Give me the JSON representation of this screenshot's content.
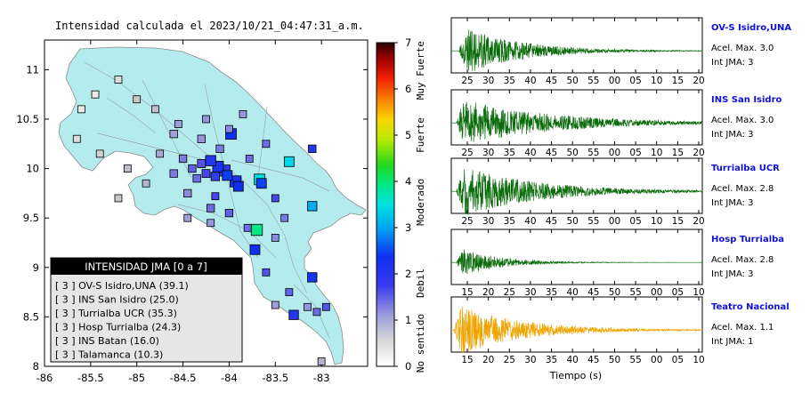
{
  "map_title": "Intensidad calculada el 2023/10/21_04:47:31_a.m.",
  "legend": {
    "header": "INTENSIDAD JMA [0 a 7]",
    "entries": [
      "[ 3 ] OV-S Isidro,UNA (39.1)",
      "[ 3 ] INS San Isidro (25.0)",
      "[ 3 ] Turrialba UCR (35.3)",
      "[ 3 ] Hosp Turrialba (24.3)",
      "[ 3 ] INS Batan (16.0)",
      "[ 3 ] Talamanca (10.3)"
    ]
  },
  "colorbar": {
    "ticks": [
      "0",
      "1",
      "2",
      "3",
      "4",
      "5",
      "6",
      "7"
    ],
    "labels": [
      "No sentido",
      "Debil",
      "Moderado",
      "Fuerte",
      "Muy Fuerte"
    ]
  },
  "colors": {
    "land": "#b4ecee",
    "frame": "#000000",
    "seismo_green": "#0a6b0a",
    "seismo_orange": "#f0a400",
    "station_name": "#1010d8"
  },
  "stations": [
    {
      "name": "OV-S Isidro,UNA",
      "acel": "Acel. Max. 3.0",
      "jma": "Int JMA: 3",
      "ticks": [
        "25",
        "30",
        "35",
        "40",
        "45",
        "50",
        "55",
        "00",
        "05",
        "10",
        "15",
        "20"
      ],
      "color": "#0a6b0a",
      "peak": 0.9,
      "onset": 0.03,
      "decay": 0.22
    },
    {
      "name": "INS San Isidro",
      "acel": "Acel. Max. 3.0",
      "jma": "Int JMA: 3",
      "ticks": [
        "25",
        "30",
        "35",
        "40",
        "45",
        "50",
        "55",
        "00",
        "05",
        "10",
        "15",
        "20"
      ],
      "color": "#0a6b0a",
      "peak": 0.85,
      "onset": 0.02,
      "decay": 0.35
    },
    {
      "name": "Turrialba UCR",
      "acel": "Acel. Max. 2.8",
      "jma": "Int JMA: 3",
      "ticks": [
        "25",
        "30",
        "35",
        "40",
        "45",
        "50",
        "55",
        "00",
        "05",
        "10",
        "15",
        "20"
      ],
      "color": "#0a6b0a",
      "peak": 0.9,
      "onset": 0.02,
      "decay": 0.3
    },
    {
      "name": "Hosp Turrialba",
      "acel": "Acel. Max. 2.8",
      "jma": "Int JMA: 3",
      "ticks": [
        "15",
        "20",
        "25",
        "30",
        "35",
        "40",
        "45",
        "50",
        "55",
        "00",
        "05",
        "10"
      ],
      "color": "#0a6b0a",
      "peak": 0.55,
      "onset": 0.02,
      "decay": 0.15
    },
    {
      "name": "Teatro Nacional",
      "acel": "Acel. Max. 1.1",
      "jma": "Int JMA: 1",
      "ticks": [
        "15",
        "20",
        "25",
        "30",
        "35",
        "40",
        "45",
        "50",
        "55",
        "00",
        "05",
        "10"
      ],
      "color": "#f0a400",
      "peak": 0.9,
      "onset": 0.01,
      "decay": 0.25
    }
  ],
  "chart_data": [
    {
      "type": "scatter",
      "title": "Intensidad calculada el 2023/10/21_04:47:31_a.m.",
      "x_ticks": [
        "-86",
        "-85.5",
        "-85",
        "-84.5",
        "-84",
        "-83.5",
        "-83"
      ],
      "y_ticks": [
        "8",
        "8.5",
        "9",
        "9.5",
        "10",
        "10.5",
        "11"
      ],
      "xlim": [
        -86,
        -82.5
      ],
      "ylim": [
        8,
        11.3
      ],
      "points": [
        {
          "x": -83.98,
          "y": 10.35,
          "jma": 2.2,
          "size": 1.4
        },
        {
          "x": -83.35,
          "y": 10.07,
          "jma": 3.4,
          "size": 1.2
        },
        {
          "x": -83.67,
          "y": 9.89,
          "jma": 3.5,
          "size": 1.4
        },
        {
          "x": -83.65,
          "y": 9.85,
          "jma": 2.3,
          "size": 1.2
        },
        {
          "x": -83.93,
          "y": 9.87,
          "jma": 2.1,
          "size": 1.5
        },
        {
          "x": -83.9,
          "y": 9.82,
          "jma": 2.2,
          "size": 1.2
        },
        {
          "x": -84.05,
          "y": 9.98,
          "jma": 1.9,
          "size": 1.5
        },
        {
          "x": -84.12,
          "y": 10.02,
          "jma": 2.1,
          "size": 1.4
        },
        {
          "x": -84.2,
          "y": 10.08,
          "jma": 2.0,
          "size": 1.3
        },
        {
          "x": -84.02,
          "y": 9.93,
          "jma": 2.3,
          "size": 1.2
        },
        {
          "x": -83.7,
          "y": 9.38,
          "jma": 3.9,
          "size": 1.5
        },
        {
          "x": -83.72,
          "y": 9.18,
          "jma": 2.2,
          "size": 1.2
        },
        {
          "x": -83.1,
          "y": 9.62,
          "jma": 3.0,
          "size": 1.1
        },
        {
          "x": -83.1,
          "y": 8.9,
          "jma": 2.1,
          "size": 1.1
        },
        {
          "x": -83.3,
          "y": 8.52,
          "jma": 2.0,
          "size": 1.1
        },
        {
          "x": -83.1,
          "y": 10.2,
          "jma": 2.0,
          "size": 0.7
        },
        {
          "x": -84.15,
          "y": 9.92,
          "jma": 1.8,
          "size": 0.9
        },
        {
          "x": -84.25,
          "y": 9.95,
          "jma": 1.6,
          "size": 0.8
        },
        {
          "x": -84.3,
          "y": 10.05,
          "jma": 1.5,
          "size": 0.8
        },
        {
          "x": -84.4,
          "y": 10.0,
          "jma": 1.4,
          "size": 0.7
        },
        {
          "x": -84.35,
          "y": 9.9,
          "jma": 1.3,
          "size": 0.7
        },
        {
          "x": -84.5,
          "y": 10.1,
          "jma": 1.2,
          "size": 0.7
        },
        {
          "x": -84.6,
          "y": 9.95,
          "jma": 1.2,
          "size": 0.7
        },
        {
          "x": -84.45,
          "y": 9.75,
          "jma": 1.1,
          "size": 0.7
        },
        {
          "x": -84.2,
          "y": 9.6,
          "jma": 1.3,
          "size": 0.7
        },
        {
          "x": -84.0,
          "y": 9.55,
          "jma": 1.4,
          "size": 0.7
        },
        {
          "x": -84.1,
          "y": 10.2,
          "jma": 1.2,
          "size": 0.7
        },
        {
          "x": -84.3,
          "y": 10.3,
          "jma": 1.0,
          "size": 0.7
        },
        {
          "x": -84.6,
          "y": 10.35,
          "jma": 0.9,
          "size": 0.7
        },
        {
          "x": -84.8,
          "y": 10.6,
          "jma": 0.6,
          "size": 0.6
        },
        {
          "x": -85.0,
          "y": 10.7,
          "jma": 0.5,
          "size": 0.6
        },
        {
          "x": -85.2,
          "y": 10.9,
          "jma": 0.3,
          "size": 0.6
        },
        {
          "x": -85.45,
          "y": 10.75,
          "jma": 0.2,
          "size": 0.6
        },
        {
          "x": -85.6,
          "y": 10.6,
          "jma": 0.2,
          "size": 0.6
        },
        {
          "x": -85.65,
          "y": 10.3,
          "jma": 0.3,
          "size": 0.6
        },
        {
          "x": -85.4,
          "y": 10.15,
          "jma": 0.4,
          "size": 0.6
        },
        {
          "x": -85.1,
          "y": 10.0,
          "jma": 0.6,
          "size": 0.6
        },
        {
          "x": -85.2,
          "y": 9.7,
          "jma": 0.5,
          "size": 0.6
        },
        {
          "x": -84.9,
          "y": 9.85,
          "jma": 0.7,
          "size": 0.6
        },
        {
          "x": -84.75,
          "y": 10.15,
          "jma": 0.8,
          "size": 0.6
        },
        {
          "x": -84.55,
          "y": 10.45,
          "jma": 0.9,
          "size": 0.6
        },
        {
          "x": -84.25,
          "y": 10.5,
          "jma": 1.0,
          "size": 0.6
        },
        {
          "x": -83.85,
          "y": 10.55,
          "jma": 1.0,
          "size": 0.6
        },
        {
          "x": -83.6,
          "y": 10.25,
          "jma": 1.3,
          "size": 0.6
        },
        {
          "x": -83.5,
          "y": 9.7,
          "jma": 1.6,
          "size": 0.6
        },
        {
          "x": -83.4,
          "y": 9.5,
          "jma": 1.2,
          "size": 0.6
        },
        {
          "x": -83.5,
          "y": 9.3,
          "jma": 1.1,
          "size": 0.6
        },
        {
          "x": -83.8,
          "y": 9.4,
          "jma": 1.3,
          "size": 0.6
        },
        {
          "x": -84.2,
          "y": 9.45,
          "jma": 1.0,
          "size": 0.6
        },
        {
          "x": -84.45,
          "y": 9.5,
          "jma": 0.9,
          "size": 0.6
        },
        {
          "x": -83.6,
          "y": 8.95,
          "jma": 1.5,
          "size": 0.6
        },
        {
          "x": -83.35,
          "y": 8.75,
          "jma": 1.4,
          "size": 0.6
        },
        {
          "x": -83.5,
          "y": 8.62,
          "jma": 0.9,
          "size": 0.6
        },
        {
          "x": -83.15,
          "y": 8.6,
          "jma": 1.0,
          "size": 0.6
        },
        {
          "x": -83.05,
          "y": 8.55,
          "jma": 1.3,
          "size": 0.6
        },
        {
          "x": -82.95,
          "y": 8.6,
          "jma": 1.5,
          "size": 0.6
        },
        {
          "x": -83.0,
          "y": 8.05,
          "jma": 0.7,
          "size": 0.6
        },
        {
          "x": -84.15,
          "y": 9.72,
          "jma": 1.6,
          "size": 0.6
        },
        {
          "x": -83.78,
          "y": 10.1,
          "jma": 1.3,
          "size": 0.6
        },
        {
          "x": -84.0,
          "y": 10.4,
          "jma": 1.1,
          "size": 0.6
        }
      ]
    },
    {
      "type": "line",
      "xlabel": "Tiempo (s)",
      "series": [
        {
          "name": "OV-S Isidro,UNA"
        },
        {
          "name": "INS San Isidro"
        },
        {
          "name": "Turrialba UCR"
        },
        {
          "name": "Hosp Turrialba"
        },
        {
          "name": "Teatro Nacional"
        }
      ]
    }
  ]
}
